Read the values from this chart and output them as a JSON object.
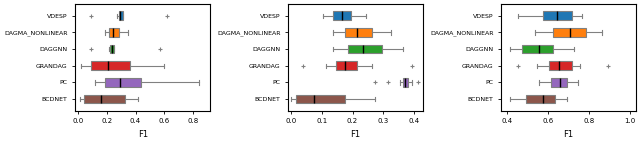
{
  "methods": [
    "VDESP",
    "DAGMA_NONLINEAR",
    "DAGGNN",
    "GRANDAG",
    "PC",
    "BCDNET"
  ],
  "colors": [
    "#1f77b4",
    "#ff7f0e",
    "#2ca02c",
    "#d62728",
    "#9467bd",
    "#8c564b"
  ],
  "subplots": [
    {
      "xlabel": "F1",
      "xlim": [
        -0.02,
        0.92
      ],
      "xticks": [
        0.0,
        0.2,
        0.4,
        0.6,
        0.8
      ],
      "boxes": [
        {
          "whislo": 0.27,
          "q1": 0.285,
          "med": 0.295,
          "q3": 0.315,
          "whishi": 0.315,
          "fliers": [
            0.09,
            0.62
          ]
        },
        {
          "whislo": 0.185,
          "q1": 0.215,
          "med": 0.245,
          "q3": 0.285,
          "whishi": 0.345,
          "fliers": []
        },
        {
          "whislo": 0.215,
          "q1": 0.225,
          "med": 0.235,
          "q3": 0.25,
          "whishi": 0.25,
          "fliers": [
            0.09,
            0.57
          ]
        },
        {
          "whislo": 0.02,
          "q1": 0.09,
          "med": 0.21,
          "q3": 0.36,
          "whishi": 0.6,
          "fliers": []
        },
        {
          "whislo": 0.12,
          "q1": 0.19,
          "med": 0.29,
          "q3": 0.44,
          "whishi": 0.84,
          "fliers": []
        },
        {
          "whislo": 0.01,
          "q1": 0.04,
          "med": 0.16,
          "q3": 0.33,
          "whishi": 0.42,
          "fliers": []
        }
      ]
    },
    {
      "xlabel": "F1",
      "xlim": [
        -0.01,
        0.43
      ],
      "xticks": [
        0.0,
        0.1,
        0.2,
        0.3,
        0.4
      ],
      "boxes": [
        {
          "whislo": 0.105,
          "q1": 0.135,
          "med": 0.165,
          "q3": 0.195,
          "whishi": 0.245,
          "fliers": []
        },
        {
          "whislo": 0.135,
          "q1": 0.175,
          "med": 0.215,
          "q3": 0.265,
          "whishi": 0.325,
          "fliers": []
        },
        {
          "whislo": 0.135,
          "q1": 0.185,
          "med": 0.235,
          "q3": 0.295,
          "whishi": 0.365,
          "fliers": []
        },
        {
          "whislo": 0.115,
          "q1": 0.145,
          "med": 0.175,
          "q3": 0.215,
          "whishi": 0.265,
          "fliers": [
            0.04,
            0.395
          ]
        },
        {
          "whislo": 0.355,
          "q1": 0.365,
          "med": 0.37,
          "q3": 0.38,
          "whishi": 0.395,
          "fliers": [
            0.275,
            0.315,
            0.415
          ]
        },
        {
          "whislo": 0.0,
          "q1": 0.015,
          "med": 0.075,
          "q3": 0.175,
          "whishi": 0.275,
          "fliers": []
        }
      ]
    },
    {
      "xlabel": "F1",
      "xlim": [
        0.37,
        1.03
      ],
      "xticks": [
        0.4,
        0.6,
        0.8,
        1.0
      ],
      "boxes": [
        {
          "whislo": 0.455,
          "q1": 0.575,
          "med": 0.645,
          "q3": 0.715,
          "whishi": 0.765,
          "fliers": []
        },
        {
          "whislo": 0.535,
          "q1": 0.625,
          "med": 0.71,
          "q3": 0.785,
          "whishi": 0.865,
          "fliers": []
        },
        {
          "whislo": 0.415,
          "q1": 0.475,
          "med": 0.555,
          "q3": 0.625,
          "whishi": 0.725,
          "fliers": []
        },
        {
          "whislo": 0.545,
          "q1": 0.605,
          "med": 0.655,
          "q3": 0.715,
          "whishi": 0.755,
          "fliers": [
            0.455,
            0.895
          ]
        },
        {
          "whislo": 0.555,
          "q1": 0.615,
          "med": 0.66,
          "q3": 0.695,
          "whishi": 0.745,
          "fliers": []
        },
        {
          "whislo": 0.415,
          "q1": 0.49,
          "med": 0.575,
          "q3": 0.635,
          "whishi": 0.695,
          "fliers": []
        }
      ]
    }
  ]
}
